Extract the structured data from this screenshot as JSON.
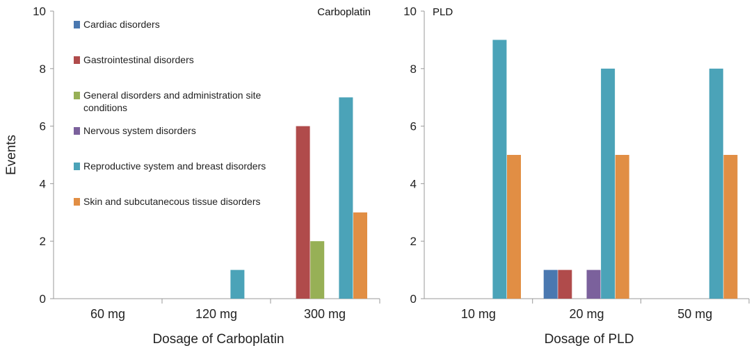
{
  "chart_data": [
    {
      "type": "bar",
      "title": "Carboplatin",
      "xlabel": "Dosage of Carboplatin",
      "ylabel": "Events",
      "ylim": [
        0,
        10
      ],
      "yticks": [
        0,
        2,
        4,
        6,
        8,
        10
      ],
      "categories": [
        "60 mg",
        "120 mg",
        "300 mg"
      ],
      "legend_position": "top-left",
      "series": [
        {
          "name": "Cardiac disorders",
          "color": "#4A78B0",
          "values": [
            0,
            0,
            0
          ]
        },
        {
          "name": "Gastrointestinal disorders",
          "color": "#B04B4B",
          "values": [
            0,
            0,
            6
          ]
        },
        {
          "name": "General disorders and administration site conditions",
          "color": "#97B056",
          "values": [
            0,
            0,
            2
          ]
        },
        {
          "name": "Nervous system disorders",
          "color": "#7B619C",
          "values": [
            0,
            0,
            0
          ]
        },
        {
          "name": "Reproductive system and breast disorders",
          "color": "#4BA3B8",
          "values": [
            0,
            1,
            7
          ]
        },
        {
          "name": "Skin and subcutanecous tissue disorders",
          "color": "#E18E44",
          "values": [
            0,
            0,
            3
          ]
        }
      ]
    },
    {
      "type": "bar",
      "title": "PLD",
      "xlabel": "Dosage of PLD",
      "ylabel": "",
      "ylim": [
        0,
        10
      ],
      "yticks": [
        0,
        2,
        4,
        6,
        8,
        10
      ],
      "categories": [
        "10 mg",
        "20 mg",
        "50 mg"
      ],
      "series": [
        {
          "name": "Cardiac disorders",
          "color": "#4A78B0",
          "values": [
            0,
            1,
            0
          ]
        },
        {
          "name": "Gastrointestinal disorders",
          "color": "#B04B4B",
          "values": [
            0,
            1,
            0
          ]
        },
        {
          "name": "General disorders and administration site conditions",
          "color": "#97B056",
          "values": [
            0,
            0,
            0
          ]
        },
        {
          "name": "Nervous system disorders",
          "color": "#7B619C",
          "values": [
            0,
            1,
            0
          ]
        },
        {
          "name": "Reproductive system and breast disorders",
          "color": "#4BA3B8",
          "values": [
            9,
            8,
            8
          ]
        },
        {
          "name": "Skin and subcutanecous tissue disorders",
          "color": "#E18E44",
          "values": [
            5,
            5,
            5
          ]
        }
      ]
    }
  ]
}
